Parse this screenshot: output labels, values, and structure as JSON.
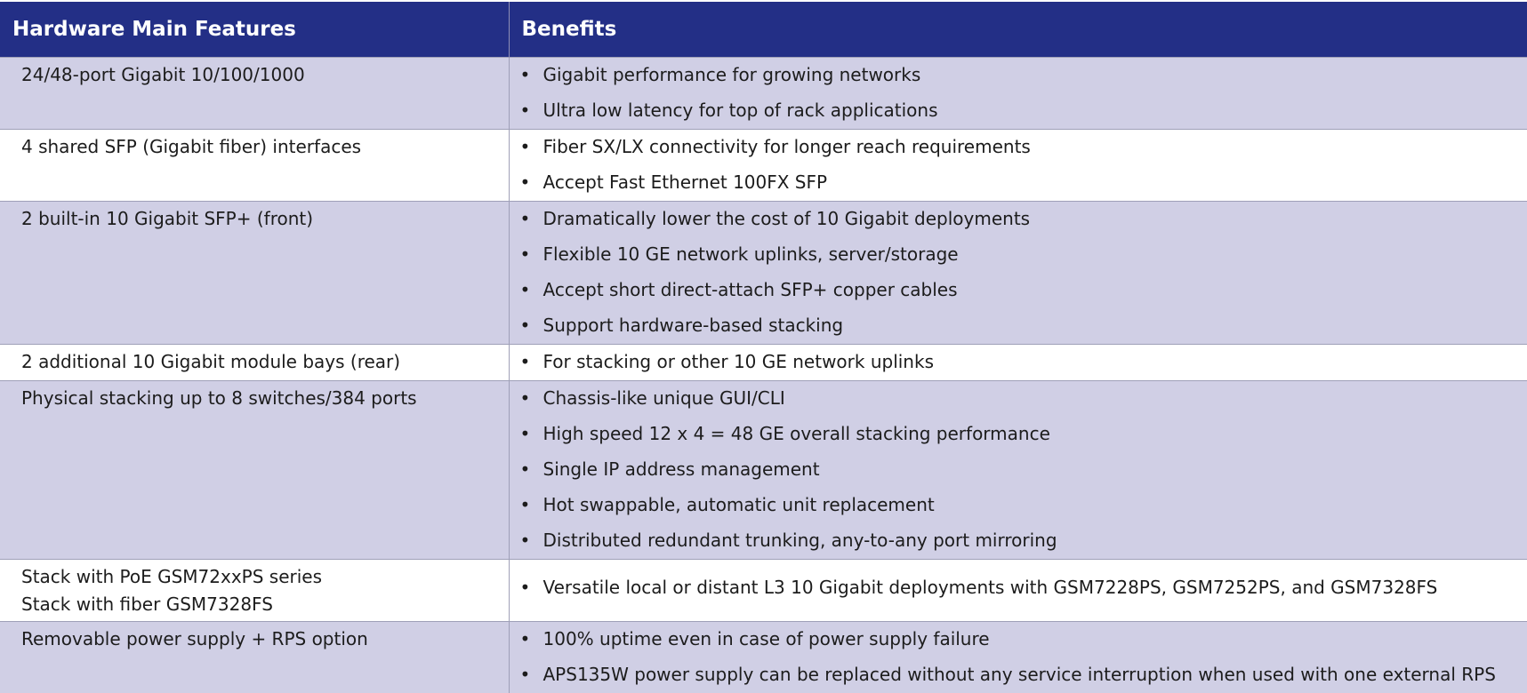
{
  "table": {
    "headers": [
      "Hardware Main Features",
      "Benefits"
    ],
    "rows": [
      {
        "feature": [
          "24/48-port Gigabit 10/100/1000"
        ],
        "benefits": [
          "Gigabit performance for growing networks",
          "Ultra low latency for top of rack applications"
        ]
      },
      {
        "feature": [
          "4 shared SFP (Gigabit fiber) interfaces"
        ],
        "benefits": [
          "Fiber SX/LX connectivity for longer reach requirements",
          "Accept Fast Ethernet 100FX SFP"
        ]
      },
      {
        "feature": [
          "2 built-in 10 Gigabit SFP+ (front)"
        ],
        "benefits": [
          "Dramatically lower the cost of 10 Gigabit deployments",
          "Flexible 10 GE network uplinks, server/storage",
          "Accept short direct-attach SFP+ copper cables",
          "Support hardware-based stacking"
        ]
      },
      {
        "feature": [
          "2 additional 10 Gigabit module bays (rear)"
        ],
        "benefits": [
          "For stacking or other 10 GE network uplinks"
        ]
      },
      {
        "feature": [
          "Physical stacking up to 8 switches/384 ports"
        ],
        "benefits": [
          "Chassis-like unique GUI/CLI",
          "High speed 12 x 4 = 48 GE overall stacking performance",
          "Single IP address management",
          "Hot swappable, automatic unit replacement",
          "Distributed redundant trunking, any-to-any port mirroring"
        ]
      },
      {
        "feature": [
          "Stack with PoE GSM72xxPS series",
          "Stack with fiber GSM7328FS"
        ],
        "benefits": [
          "Versatile local or distant L3 10 Gigabit deployments with GSM7228PS, GSM7252PS, and GSM7328FS"
        ]
      },
      {
        "feature": [
          "Removable power supply + RPS option"
        ],
        "benefits": [
          "100% uptime even in case of power supply failure",
          "APS135W power supply can be replaced without any service interruption when used with one external RPS"
        ]
      }
    ],
    "colors": {
      "header_bg": "#232f86",
      "header_text": "#ffffff",
      "shaded_row": "#d0cfe5",
      "plain_row": "#ffffff"
    }
  }
}
